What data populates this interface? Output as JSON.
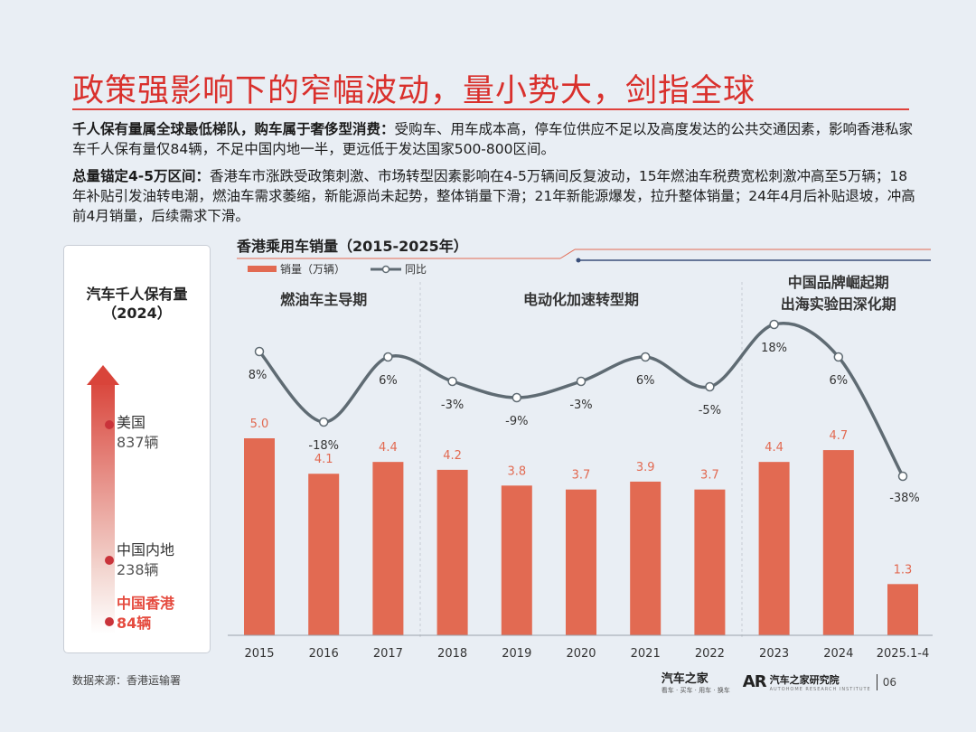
{
  "slide_title": "政策强影响下的窄幅波动，量小势大，剑指全球",
  "para1": {
    "bold": "千人保有量属全球最低梯队，购车属于奢侈型消费：",
    "text": "受购车、用车成本高，停车位供应不足以及高度发达的公共交通因素，影响香港私家车千人保有量仅84辆，不足中国内地一半，更远低于发达国家500-800区间。"
  },
  "para2": {
    "bold": "总量锚定4-5万区间：",
    "text": "香港车市涨跌受政策刺激、市场转型因素影响在4-5万辆间反复波动，15年燃油车税费宽松刺激冲高至5万辆；18年补贴引发油转电潮，燃油车需求萎缩，新能源尚未起势，整体销量下滑；21年新能源爆发，拉升整体销量；24年4月后补贴退坡，冲高前4月销量，后续需求下滑。"
  },
  "left_panel": {
    "title_line1": "汽车千人保有量",
    "title_line2": "（2024）",
    "countries": [
      {
        "name": "美国",
        "value": "837辆",
        "highlight": false
      },
      {
        "name": "中国内地",
        "value": "238辆",
        "highlight": false
      },
      {
        "name": "中国香港",
        "value": "84辆",
        "highlight": true
      }
    ]
  },
  "chart_title": "香港乘用车销量（2015-2025年）",
  "chart_data": {
    "type": "bar",
    "categories": [
      "2015",
      "2016",
      "2017",
      "2018",
      "2019",
      "2020",
      "2021",
      "2022",
      "2023",
      "2024",
      "2025.1-4"
    ],
    "series": [
      {
        "name": "销量（万辆）",
        "type": "bar",
        "values": [
          5.0,
          4.1,
          4.4,
          4.2,
          3.8,
          3.7,
          3.9,
          3.7,
          4.4,
          4.7,
          1.3
        ]
      },
      {
        "name": "同比",
        "type": "line",
        "values": [
          8,
          -18,
          6,
          -3,
          -9,
          -3,
          6,
          -5,
          18,
          6,
          -38
        ],
        "unit": "%"
      }
    ],
    "bar_labels": [
      "5.0",
      "4.1",
      "4.4",
      "4.2",
      "3.8",
      "3.7",
      "3.9",
      "3.7",
      "4.4",
      "4.7",
      "1.3"
    ],
    "line_labels": [
      "8%",
      "-18%",
      "6%",
      "-3%",
      "-9%",
      "-3%",
      "6%",
      "-5%",
      "18%",
      "6%",
      "-38%"
    ],
    "phases": [
      {
        "label": "燃油车主导期",
        "start": 0,
        "end": 2
      },
      {
        "label": "电动化加速转型期",
        "start": 3,
        "end": 7
      },
      {
        "label_line1": "中国品牌崛起期",
        "label_line2": "出海实验田深化期",
        "start": 8,
        "end": 10
      }
    ],
    "colors": {
      "bar": "#e26a52",
      "bar_label": "#e26a52",
      "line": "#5f6b73",
      "marker_fill": "#ffffff",
      "divider": "#c6ccd3"
    }
  },
  "footer": {
    "source": "数据来源：香港运输署",
    "brand1": "汽车之家",
    "brand1_sub": "看车 · 买车 · 用车 · 换车",
    "brand_logo": "AR",
    "brand2": "汽车之家研究院",
    "brand2_sub": "AUTOHOME RESEARCH INSTITUTE",
    "page": "06"
  }
}
